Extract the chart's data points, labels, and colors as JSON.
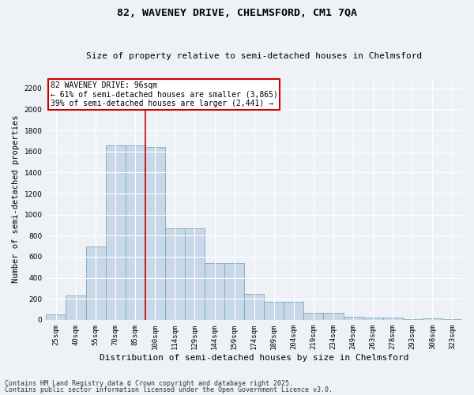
{
  "title": "82, WAVENEY DRIVE, CHELMSFORD, CM1 7QA",
  "subtitle": "Size of property relative to semi-detached houses in Chelmsford",
  "xlabel": "Distribution of semi-detached houses by size in Chelmsford",
  "ylabel": "Number of semi-detached properties",
  "bar_color": "#c8d8e8",
  "bar_edge_color": "#7aaabb",
  "bar_edge_width": 0.6,
  "bins": [
    "25sqm",
    "40sqm",
    "55sqm",
    "70sqm",
    "85sqm",
    "100sqm",
    "114sqm",
    "129sqm",
    "144sqm",
    "159sqm",
    "174sqm",
    "189sqm",
    "204sqm",
    "219sqm",
    "234sqm",
    "249sqm",
    "263sqm",
    "278sqm",
    "293sqm",
    "308sqm",
    "323sqm"
  ],
  "values": [
    50,
    230,
    700,
    1660,
    1660,
    1640,
    870,
    870,
    540,
    540,
    250,
    175,
    175,
    65,
    65,
    30,
    25,
    25,
    5,
    15,
    5
  ],
  "ylim": [
    0,
    2300
  ],
  "yticks": [
    0,
    200,
    400,
    600,
    800,
    1000,
    1200,
    1400,
    1600,
    1800,
    2000,
    2200
  ],
  "annotation_line1": "82 WAVENEY DRIVE: 96sqm",
  "annotation_line2": "← 61% of semi-detached houses are smaller (3,865)",
  "annotation_line3": "39% of semi-detached houses are larger (2,441) →",
  "footer1": "Contains HM Land Registry data © Crown copyright and database right 2025.",
  "footer2": "Contains public sector information licensed under the Open Government Licence v3.0.",
  "background_color": "#eef2f7",
  "plot_bg_color": "#eef2f7",
  "grid_color": "#ffffff",
  "vline_color": "#cc0000",
  "vline_x_index": 5,
  "box_edge_color": "#cc0000",
  "title_fontsize": 9.5,
  "subtitle_fontsize": 8,
  "axis_label_fontsize": 7.5,
  "tick_fontsize": 6.5,
  "annotation_fontsize": 7,
  "footer_fontsize": 6
}
